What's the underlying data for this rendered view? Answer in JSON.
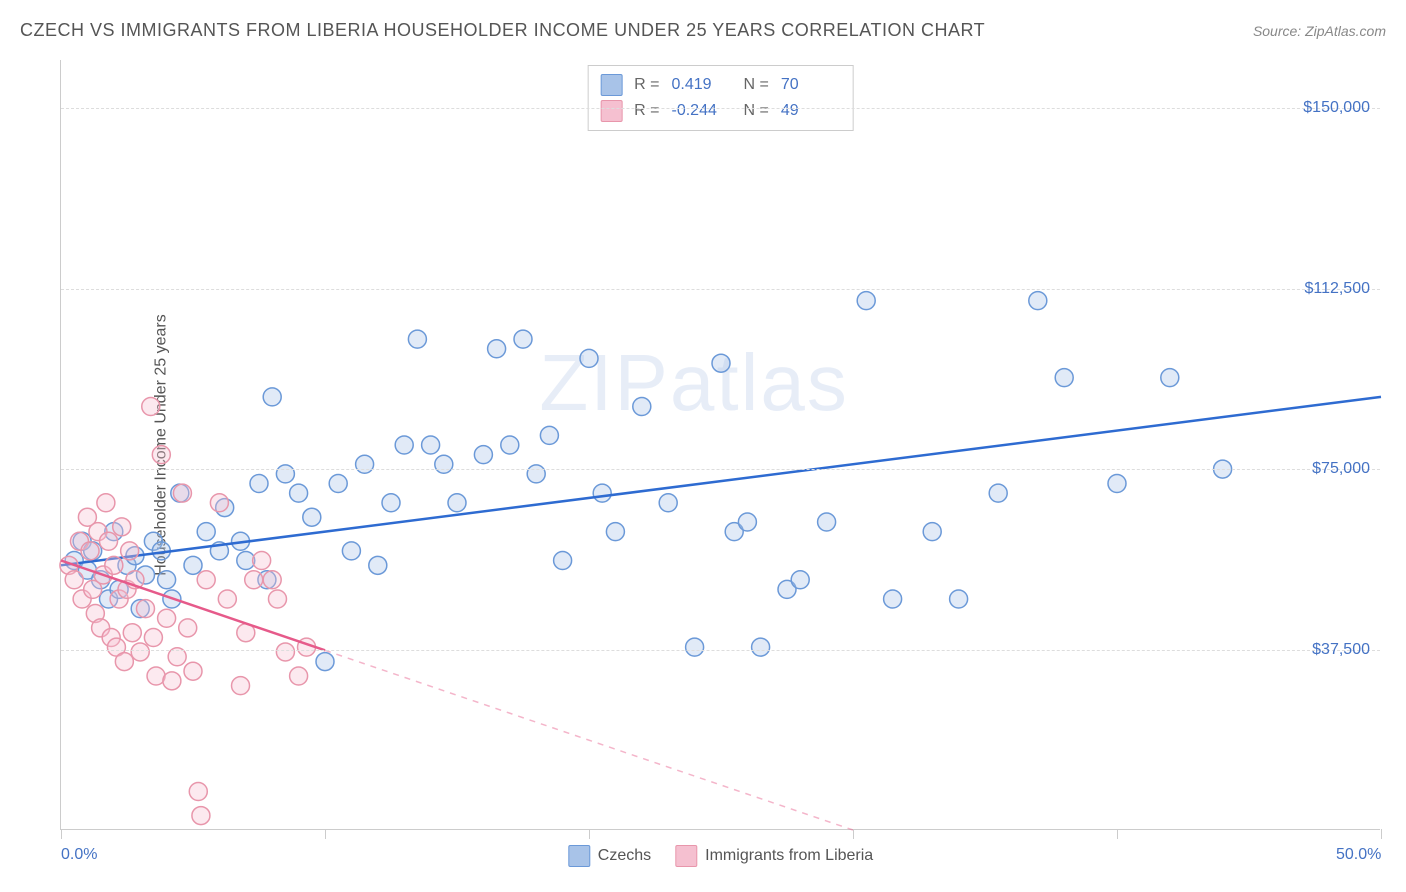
{
  "title": "CZECH VS IMMIGRANTS FROM LIBERIA HOUSEHOLDER INCOME UNDER 25 YEARS CORRELATION CHART",
  "source": "Source: ZipAtlas.com",
  "watermark": "ZIPatlas",
  "ylabel": "Householder Income Under 25 years",
  "chart": {
    "type": "scatter",
    "xlim": [
      0,
      50
    ],
    "ylim": [
      0,
      160000
    ],
    "xtick_positions": [
      0,
      10,
      20,
      30,
      40,
      50
    ],
    "xtick_labels": [
      "0.0%",
      "",
      "",
      "",
      "",
      "50.0%"
    ],
    "ytick_positions": [
      37500,
      75000,
      112500,
      150000
    ],
    "ytick_labels": [
      "$37,500",
      "$75,000",
      "$112,500",
      "$150,000"
    ],
    "grid_color": "#dddddd",
    "background_color": "#ffffff",
    "marker_radius": 9,
    "marker_stroke_width": 1.5,
    "marker_fill_opacity": 0.35,
    "line_width": 2.5,
    "series": [
      {
        "name": "Czechs",
        "color_stroke": "#6b99d8",
        "color_fill": "#a8c3e8",
        "line_color": "#2e6bd1",
        "R": "0.419",
        "N": "70",
        "trend": {
          "x1": 0,
          "y1": 55000,
          "x2": 50,
          "y2": 90000,
          "dashed": false
        },
        "points": [
          [
            0.5,
            56000
          ],
          [
            0.8,
            60000
          ],
          [
            1.0,
            54000
          ],
          [
            1.2,
            58000
          ],
          [
            1.5,
            52000
          ],
          [
            1.8,
            48000
          ],
          [
            2.0,
            62000
          ],
          [
            2.2,
            50000
          ],
          [
            2.5,
            55000
          ],
          [
            2.8,
            57000
          ],
          [
            3.0,
            46000
          ],
          [
            3.2,
            53000
          ],
          [
            3.5,
            60000
          ],
          [
            3.8,
            58000
          ],
          [
            4.0,
            52000
          ],
          [
            4.2,
            48000
          ],
          [
            4.5,
            70000
          ],
          [
            5.0,
            55000
          ],
          [
            5.5,
            62000
          ],
          [
            6.0,
            58000
          ],
          [
            6.2,
            67000
          ],
          [
            6.8,
            60000
          ],
          [
            7.0,
            56000
          ],
          [
            7.5,
            72000
          ],
          [
            7.8,
            52000
          ],
          [
            8.0,
            90000
          ],
          [
            8.5,
            74000
          ],
          [
            9.0,
            70000
          ],
          [
            9.5,
            65000
          ],
          [
            10.0,
            35000
          ],
          [
            10.5,
            72000
          ],
          [
            11.0,
            58000
          ],
          [
            11.5,
            76000
          ],
          [
            12.0,
            55000
          ],
          [
            12.5,
            68000
          ],
          [
            13.0,
            80000
          ],
          [
            13.5,
            102000
          ],
          [
            14.0,
            80000
          ],
          [
            14.5,
            76000
          ],
          [
            15.0,
            68000
          ],
          [
            16.0,
            78000
          ],
          [
            16.5,
            100000
          ],
          [
            17.0,
            80000
          ],
          [
            17.5,
            102000
          ],
          [
            18.0,
            74000
          ],
          [
            18.5,
            82000
          ],
          [
            19.0,
            56000
          ],
          [
            20.0,
            98000
          ],
          [
            20.5,
            70000
          ],
          [
            21.0,
            62000
          ],
          [
            22.0,
            88000
          ],
          [
            23.0,
            68000
          ],
          [
            24.0,
            38000
          ],
          [
            25.0,
            97000
          ],
          [
            25.5,
            62000
          ],
          [
            26.0,
            64000
          ],
          [
            26.5,
            38000
          ],
          [
            27.5,
            50000
          ],
          [
            28.0,
            52000
          ],
          [
            29.0,
            64000
          ],
          [
            30.5,
            110000
          ],
          [
            31.5,
            48000
          ],
          [
            33.0,
            62000
          ],
          [
            34.0,
            48000
          ],
          [
            35.5,
            70000
          ],
          [
            37.0,
            110000
          ],
          [
            38.0,
            94000
          ],
          [
            40.0,
            72000
          ],
          [
            42.0,
            94000
          ],
          [
            44.0,
            75000
          ]
        ]
      },
      {
        "name": "Immigrants from Liberia",
        "color_stroke": "#e896ab",
        "color_fill": "#f5c0d0",
        "line_color": "#e65a8a",
        "R": "-0.244",
        "N": "49",
        "trend": {
          "x1": 0,
          "y1": 56000,
          "x2": 30,
          "y2": 0,
          "dashed_from_x": 10
        },
        "points": [
          [
            0.3,
            55000
          ],
          [
            0.5,
            52000
          ],
          [
            0.7,
            60000
          ],
          [
            0.8,
            48000
          ],
          [
            1.0,
            65000
          ],
          [
            1.1,
            58000
          ],
          [
            1.2,
            50000
          ],
          [
            1.3,
            45000
          ],
          [
            1.4,
            62000
          ],
          [
            1.5,
            42000
          ],
          [
            1.6,
            53000
          ],
          [
            1.7,
            68000
          ],
          [
            1.8,
            60000
          ],
          [
            1.9,
            40000
          ],
          [
            2.0,
            55000
          ],
          [
            2.1,
            38000
          ],
          [
            2.2,
            48000
          ],
          [
            2.3,
            63000
          ],
          [
            2.4,
            35000
          ],
          [
            2.5,
            50000
          ],
          [
            2.6,
            58000
          ],
          [
            2.7,
            41000
          ],
          [
            2.8,
            52000
          ],
          [
            3.0,
            37000
          ],
          [
            3.2,
            46000
          ],
          [
            3.4,
            88000
          ],
          [
            3.5,
            40000
          ],
          [
            3.6,
            32000
          ],
          [
            3.8,
            78000
          ],
          [
            4.0,
            44000
          ],
          [
            4.2,
            31000
          ],
          [
            4.4,
            36000
          ],
          [
            4.6,
            70000
          ],
          [
            4.8,
            42000
          ],
          [
            5.0,
            33000
          ],
          [
            5.2,
            8000
          ],
          [
            5.3,
            3000
          ],
          [
            5.5,
            52000
          ],
          [
            6.0,
            68000
          ],
          [
            6.3,
            48000
          ],
          [
            6.8,
            30000
          ],
          [
            7.0,
            41000
          ],
          [
            7.3,
            52000
          ],
          [
            7.6,
            56000
          ],
          [
            8.0,
            52000
          ],
          [
            8.2,
            48000
          ],
          [
            8.5,
            37000
          ],
          [
            9.0,
            32000
          ],
          [
            9.3,
            38000
          ]
        ]
      }
    ]
  },
  "legend_top": {
    "rows": [
      {
        "swatch_fill": "#a8c3e8",
        "swatch_stroke": "#6b99d8",
        "R": "0.419",
        "N": "70"
      },
      {
        "swatch_fill": "#f5c0d0",
        "swatch_stroke": "#e896ab",
        "R": "-0.244",
        "N": "49"
      }
    ]
  },
  "legend_bottom": {
    "items": [
      {
        "swatch_fill": "#a8c3e8",
        "swatch_stroke": "#6b99d8",
        "label": "Czechs"
      },
      {
        "swatch_fill": "#f5c0d0",
        "swatch_stroke": "#e896ab",
        "label": "Immigrants from Liberia"
      }
    ]
  }
}
